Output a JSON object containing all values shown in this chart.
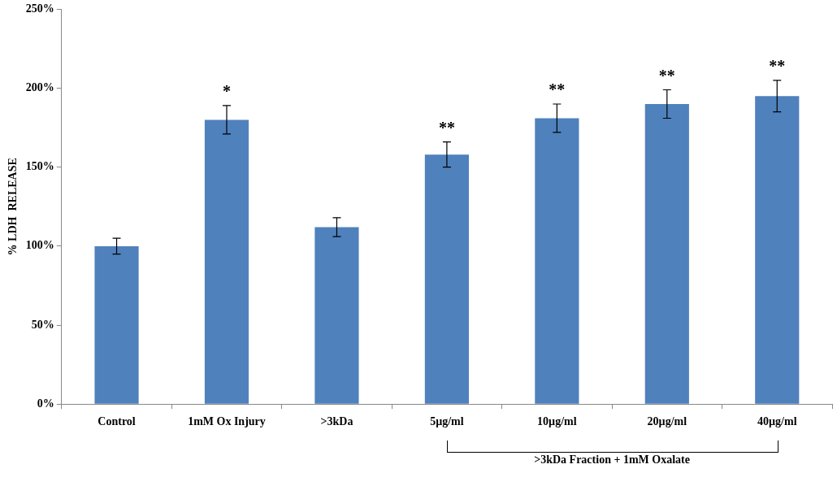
{
  "chart_data": {
    "type": "bar",
    "ylabel": "% LDH  RELEASE",
    "categories": [
      "Control",
      "1mM Ox Injury",
      ">3kDa",
      "5µg/ml",
      "10µg/ml",
      "20µg/ml",
      "40µg/ml"
    ],
    "values": [
      100,
      180,
      112,
      158,
      181,
      190,
      195
    ],
    "errors": [
      5,
      9,
      6,
      8,
      9,
      9,
      10
    ],
    "color": "#4f81bd",
    "ylim": [
      0,
      250
    ],
    "yticks": [
      {
        "value": 0,
        "label": "0%"
      },
      {
        "value": 50,
        "label": "50%"
      },
      {
        "value": 100,
        "label": "100%"
      },
      {
        "value": 150,
        "label": "150%"
      },
      {
        "value": 200,
        "label": "200%"
      },
      {
        "value": 250,
        "label": "250%"
      }
    ],
    "grid": false,
    "legend": false,
    "value_labels": [
      null,
      "*",
      null,
      "**",
      "**",
      "**",
      "**"
    ],
    "annotations": [
      ">3kDa Fraction + 1mM Oxalate"
    ]
  }
}
